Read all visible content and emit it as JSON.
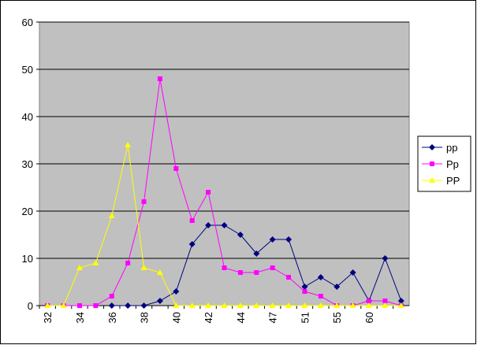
{
  "chart_data": {
    "type": "line",
    "categories": [
      "32",
      null,
      "34",
      null,
      "36",
      null,
      "38",
      null,
      "40",
      null,
      "42",
      null,
      "44",
      null,
      "47",
      null,
      "51",
      null,
      "55",
      null,
      "60",
      null,
      null
    ],
    "series": [
      {
        "name": "pp",
        "color": "#000080",
        "marker": "diamond",
        "values": [
          null,
          null,
          null,
          null,
          0,
          0,
          0,
          1,
          3,
          13,
          17,
          17,
          15,
          11,
          14,
          14,
          4,
          6,
          4,
          7,
          1,
          10,
          1
        ]
      },
      {
        "name": "Pp",
        "color": "#ff00ff",
        "marker": "square",
        "values": [
          0,
          0,
          0,
          0,
          2,
          9,
          22,
          48,
          29,
          18,
          24,
          8,
          7,
          7,
          8,
          6,
          3,
          2,
          0,
          0,
          1,
          1,
          0
        ]
      },
      {
        "name": "PP",
        "color": "#ffff00",
        "marker": "triangle",
        "values": [
          0,
          0,
          8,
          9,
          19,
          34,
          8,
          7,
          0,
          0,
          0,
          0,
          0,
          0,
          0,
          0,
          0,
          0,
          0,
          0,
          0,
          0,
          0
        ]
      }
    ],
    "ylim": [
      0,
      60
    ],
    "yticks": [
      0,
      10,
      20,
      30,
      40,
      50,
      60
    ],
    "grid": true,
    "legend": "right"
  }
}
